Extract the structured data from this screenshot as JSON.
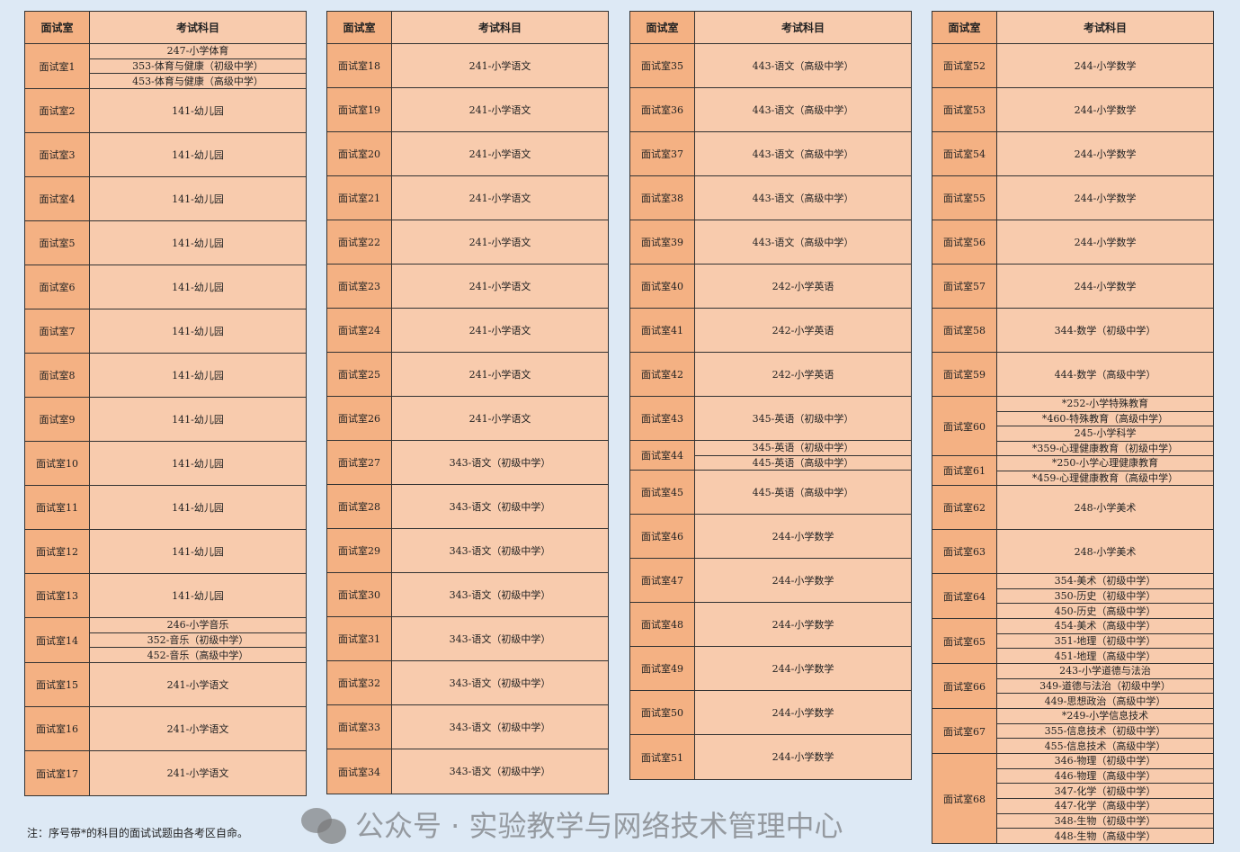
{
  "header": {
    "room": "面试室",
    "subject": "考试科目"
  },
  "tables": [
    {
      "rooms": [
        {
          "name": "面试室1",
          "subjects": [
            "247-小学体育",
            "353-体育与健康（初级中学）",
            "453-体育与健康（高级中学）"
          ]
        },
        {
          "name": "面试室2",
          "subjects": [
            "141-幼儿园"
          ]
        },
        {
          "name": "面试室3",
          "subjects": [
            "141-幼儿园"
          ]
        },
        {
          "name": "面试室4",
          "subjects": [
            "141-幼儿园"
          ]
        },
        {
          "name": "面试室5",
          "subjects": [
            "141-幼儿园"
          ]
        },
        {
          "name": "面试室6",
          "subjects": [
            "141-幼儿园"
          ]
        },
        {
          "name": "面试室7",
          "subjects": [
            "141-幼儿园"
          ]
        },
        {
          "name": "面试室8",
          "subjects": [
            "141-幼儿园"
          ]
        },
        {
          "name": "面试室9",
          "subjects": [
            "141-幼儿园"
          ]
        },
        {
          "name": "面试室10",
          "subjects": [
            "141-幼儿园"
          ]
        },
        {
          "name": "面试室11",
          "subjects": [
            "141-幼儿园"
          ]
        },
        {
          "name": "面试室12",
          "subjects": [
            "141-幼儿园"
          ]
        },
        {
          "name": "面试室13",
          "subjects": [
            "141-幼儿园"
          ]
        },
        {
          "name": "面试室14",
          "subjects": [
            "246-小学音乐",
            "352-音乐（初级中学）",
            "452-音乐（高级中学）"
          ]
        },
        {
          "name": "面试室15",
          "subjects": [
            "241-小学语文"
          ]
        },
        {
          "name": "面试室16",
          "subjects": [
            "241-小学语文"
          ]
        },
        {
          "name": "面试室17",
          "subjects": [
            "241-小学语文"
          ]
        }
      ]
    },
    {
      "rooms": [
        {
          "name": "面试室18",
          "subjects": [
            "241-小学语文"
          ]
        },
        {
          "name": "面试室19",
          "subjects": [
            "241-小学语文"
          ]
        },
        {
          "name": "面试室20",
          "subjects": [
            "241-小学语文"
          ]
        },
        {
          "name": "面试室21",
          "subjects": [
            "241-小学语文"
          ]
        },
        {
          "name": "面试室22",
          "subjects": [
            "241-小学语文"
          ]
        },
        {
          "name": "面试室23",
          "subjects": [
            "241-小学语文"
          ]
        },
        {
          "name": "面试室24",
          "subjects": [
            "241-小学语文"
          ]
        },
        {
          "name": "面试室25",
          "subjects": [
            "241-小学语文"
          ]
        },
        {
          "name": "面试室26",
          "subjects": [
            "241-小学语文"
          ]
        },
        {
          "name": "面试室27",
          "subjects": [
            "343-语文（初级中学）"
          ]
        },
        {
          "name": "面试室28",
          "subjects": [
            "343-语文（初级中学）"
          ]
        },
        {
          "name": "面试室29",
          "subjects": [
            "343-语文（初级中学）"
          ]
        },
        {
          "name": "面试室30",
          "subjects": [
            "343-语文（初级中学）"
          ]
        },
        {
          "name": "面试室31",
          "subjects": [
            "343-语文（初级中学）"
          ]
        },
        {
          "name": "面试室32",
          "subjects": [
            "343-语文（初级中学）"
          ]
        },
        {
          "name": "面试室33",
          "subjects": [
            "343-语文（初级中学）"
          ]
        },
        {
          "name": "面试室34",
          "subjects": [
            "343-语文（初级中学）"
          ]
        }
      ]
    },
    {
      "rooms": [
        {
          "name": "面试室35",
          "subjects": [
            "443-语文（高级中学）"
          ]
        },
        {
          "name": "面试室36",
          "subjects": [
            "443-语文（高级中学）"
          ]
        },
        {
          "name": "面试室37",
          "subjects": [
            "443-语文（高级中学）"
          ]
        },
        {
          "name": "面试室38",
          "subjects": [
            "443-语文（高级中学）"
          ]
        },
        {
          "name": "面试室39",
          "subjects": [
            "443-语文（高级中学）"
          ]
        },
        {
          "name": "面试室40",
          "subjects": [
            "242-小学英语"
          ]
        },
        {
          "name": "面试室41",
          "subjects": [
            "242-小学英语"
          ]
        },
        {
          "name": "面试室42",
          "subjects": [
            "242-小学英语"
          ]
        },
        {
          "name": "面试室43",
          "subjects": [
            "345-英语（初级中学）"
          ]
        },
        {
          "name": "面试室44",
          "subjects": [
            "345-英语（初级中学）",
            "445-英语（高级中学）"
          ]
        },
        {
          "name": "面试室45",
          "subjects": [
            "445-英语（高级中学）"
          ]
        },
        {
          "name": "面试室46",
          "subjects": [
            "244-小学数学"
          ]
        },
        {
          "name": "面试室47",
          "subjects": [
            "244-小学数学"
          ]
        },
        {
          "name": "面试室48",
          "subjects": [
            "244-小学数学"
          ]
        },
        {
          "name": "面试室49",
          "subjects": [
            "244-小学数学"
          ]
        },
        {
          "name": "面试室50",
          "subjects": [
            "244-小学数学"
          ]
        },
        {
          "name": "面试室51",
          "subjects": [
            "244-小学数学"
          ]
        }
      ]
    },
    {
      "rooms": [
        {
          "name": "面试室52",
          "subjects": [
            "244-小学数学"
          ]
        },
        {
          "name": "面试室53",
          "subjects": [
            "244-小学数学"
          ]
        },
        {
          "name": "面试室54",
          "subjects": [
            "244-小学数学"
          ]
        },
        {
          "name": "面试室55",
          "subjects": [
            "244-小学数学"
          ]
        },
        {
          "name": "面试室56",
          "subjects": [
            "244-小学数学"
          ]
        },
        {
          "name": "面试室57",
          "subjects": [
            "244-小学数学"
          ]
        },
        {
          "name": "面试室58",
          "subjects": [
            "344-数学（初级中学）"
          ]
        },
        {
          "name": "面试室59",
          "subjects": [
            "444-数学（高级中学）"
          ]
        },
        {
          "name": "面试室60",
          "subjects": [
            "*252-小学特殊教育",
            "*460-特殊教育（高级中学）",
            "245-小学科学",
            "*359-心理健康教育（初级中学）"
          ]
        },
        {
          "name": "面试室61",
          "subjects": [
            "*250-小学心理健康教育",
            "*459-心理健康教育（高级中学）"
          ]
        },
        {
          "name": "面试室62",
          "subjects": [
            "248-小学美术"
          ]
        },
        {
          "name": "面试室63",
          "subjects": [
            "248-小学美术"
          ]
        },
        {
          "name": "面试室64",
          "subjects": [
            "354-美术（初级中学）",
            "350-历史（初级中学）",
            "450-历史（高级中学）"
          ]
        },
        {
          "name": "面试室65",
          "subjects": [
            "454-美术（高级中学）",
            "351-地理（初级中学）",
            "451-地理（高级中学）"
          ]
        },
        {
          "name": "面试室66",
          "subjects": [
            "243-小学道德与法治",
            "349-道德与法治（初级中学）",
            "449-思想政治（高级中学）"
          ]
        },
        {
          "name": "面试室67",
          "subjects": [
            "*249-小学信息技术",
            "355-信息技术（初级中学）",
            "455-信息技术（高级中学）"
          ]
        },
        {
          "name": "面试室68",
          "subjects": [
            "346-物理（初级中学）",
            "446-物理（高级中学）",
            "347-化学（初级中学）",
            "447-化学（高级中学）",
            "348-生物（初级中学）",
            "448-生物（高级中学）"
          ]
        }
      ]
    }
  ],
  "note": "注：序号带*的科目的面试试题由各考区自命。",
  "watermark": "公众号 · 实验教学与网络技术管理中心",
  "colors": {
    "background": "#dde9f5",
    "room_cell": "#f4b183",
    "subject_cell": "#f8cbad"
  }
}
